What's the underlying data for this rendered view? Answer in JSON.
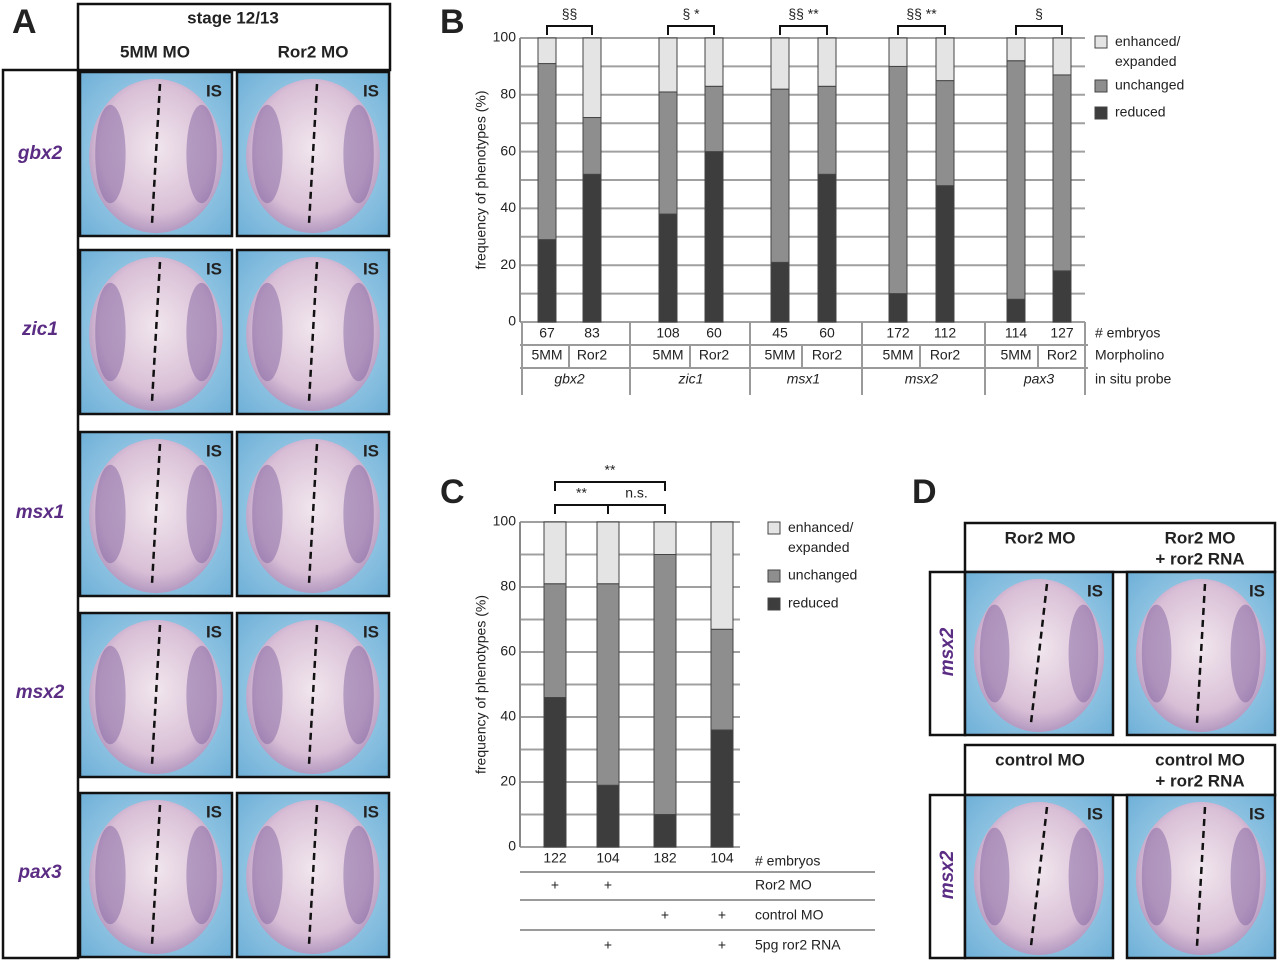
{
  "panel_a": {
    "label": "A",
    "stage": "stage 12/13",
    "columns": [
      "5MM MO",
      "Ror2 MO"
    ],
    "genes": [
      "gbx2",
      "zic1",
      "msx1",
      "msx2",
      "pax3"
    ],
    "image_label": "IS"
  },
  "panel_d": {
    "label": "D",
    "image_label": "IS",
    "groups": [
      {
        "gene": "msx2",
        "columns": [
          [
            "Ror2 MO"
          ],
          [
            "Ror2 MO",
            "+ ror2 RNA"
          ]
        ]
      },
      {
        "gene": "msx2",
        "columns": [
          [
            "control MO"
          ],
          [
            "control MO",
            "+ ror2 RNA"
          ]
        ]
      }
    ]
  },
  "chart_data": [
    {
      "panel_label": "B",
      "type": "stacked_bar",
      "ylabel": "frequency of phenotypes (%)",
      "ylim": [
        0,
        100
      ],
      "yticks": [
        0,
        20,
        40,
        60,
        80,
        100
      ],
      "minor_yticks": [
        10,
        30,
        50,
        70,
        90
      ],
      "grid": true,
      "legend": "right",
      "categories": [
        "5MM",
        "Ror2",
        "5MM",
        "Ror2",
        "5MM",
        "Ror2",
        "5MM",
        "Ror2",
        "5MM",
        "Ror2"
      ],
      "embryo_counts": [
        67,
        83,
        108,
        60,
        45,
        60,
        172,
        112,
        114,
        127
      ],
      "groups": [
        {
          "name": "gbx2",
          "significance": "§§"
        },
        {
          "name": "zic1",
          "significance": "§  *"
        },
        {
          "name": "msx1",
          "significance": "§§ **"
        },
        {
          "name": "msx2",
          "significance": "§§ **"
        },
        {
          "name": "pax3",
          "significance": "§"
        }
      ],
      "row_labels": [
        "# embryos",
        "Morpholino",
        "in situ probe"
      ],
      "series": [
        {
          "name": "reduced",
          "color": "#3d3d3d",
          "values": [
            29,
            52,
            38,
            60,
            21,
            52,
            10,
            48,
            8,
            18
          ]
        },
        {
          "name": "unchanged",
          "color": "#8e8e8e",
          "values": [
            62,
            20,
            43,
            23,
            61,
            31,
            80,
            37,
            84,
            69
          ]
        },
        {
          "name": "enhanced/ expanded",
          "color": "#e4e4e4",
          "values": [
            9,
            28,
            19,
            17,
            18,
            17,
            10,
            15,
            8,
            13
          ]
        }
      ]
    },
    {
      "panel_label": "C",
      "type": "stacked_bar",
      "ylabel": "frequency of phenotypes (%)",
      "ylim": [
        0,
        100
      ],
      "yticks": [
        0,
        20,
        40,
        60,
        80,
        100
      ],
      "minor_yticks": [
        10,
        30,
        50,
        70,
        90
      ],
      "grid": true,
      "legend": "right",
      "embryo_counts": [
        122,
        104,
        182,
        104
      ],
      "count_label": "# embryos",
      "conditions": [
        {
          "name": "Ror2 MO",
          "marks": [
            "+",
            "+",
            null,
            null
          ]
        },
        {
          "name": "control MO",
          "marks": [
            null,
            null,
            "+",
            "+"
          ]
        },
        {
          "name": "5pg ror2 RNA",
          "marks": [
            null,
            "+",
            null,
            "+"
          ]
        }
      ],
      "comparisons": [
        {
          "bars": [
            0,
            1
          ],
          "label": "**"
        },
        {
          "bars": [
            1,
            2
          ],
          "label": "n.s."
        },
        {
          "bars": [
            0,
            2
          ],
          "label": "**"
        }
      ],
      "series": [
        {
          "name": "reduced",
          "color": "#3d3d3d",
          "values": [
            46,
            19,
            10,
            36
          ]
        },
        {
          "name": "unchanged",
          "color": "#8e8e8e",
          "values": [
            35,
            62,
            80,
            31
          ]
        },
        {
          "name": "enhanced/ expanded",
          "color": "#e4e4e4",
          "values": [
            19,
            19,
            10,
            33
          ]
        }
      ]
    }
  ]
}
